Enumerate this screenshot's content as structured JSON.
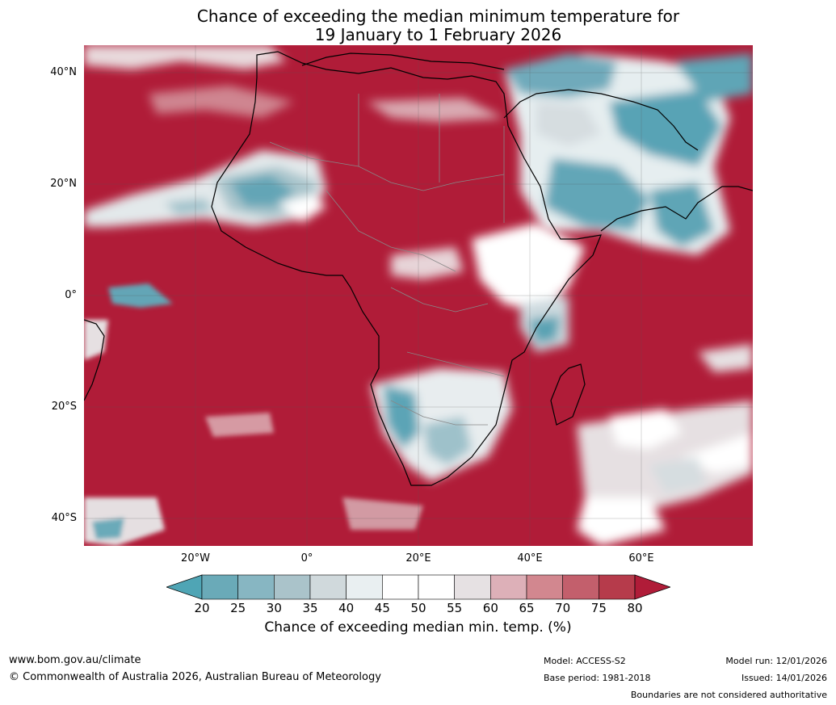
{
  "title": {
    "line1": "Chance of exceeding the median minimum temperature for",
    "line2": "19 January to 1 February 2026"
  },
  "map": {
    "lat_labels": [
      "40°N",
      "20°N",
      "0°",
      "20°S",
      "40°S"
    ],
    "lon_labels": [
      "20°W",
      "0°",
      "20°E",
      "40°E",
      "60°E"
    ],
    "region": "Africa and surrounding oceans"
  },
  "colorbar": {
    "ticks": [
      "20",
      "25",
      "30",
      "35",
      "40",
      "45",
      "50",
      "55",
      "60",
      "65",
      "70",
      "75",
      "80"
    ],
    "colors": [
      "#4fa5b5",
      "#6aaab8",
      "#87b6c2",
      "#aac3ca",
      "#d0d9dc",
      "#e9eff1",
      "#ffffff",
      "#ffffff",
      "#e6e1e3",
      "#ddb0b8",
      "#d2878f",
      "#c35f6c",
      "#b63b4b",
      "#b01c38"
    ],
    "label": "Chance of exceeding median min. temp. (%)"
  },
  "footer": {
    "website": "www.bom.gov.au/climate",
    "copyright": "© Commonwealth of Australia 2026, Australian Bureau of Meteorology",
    "model": "Model: ACCESS-S2",
    "base_period": "Base period: 1981-2018",
    "model_run": "Model run: 12/01/2026",
    "issued": "Issued: 14/01/2026",
    "disclaimer": "Boundaries are not considered authoritative"
  }
}
